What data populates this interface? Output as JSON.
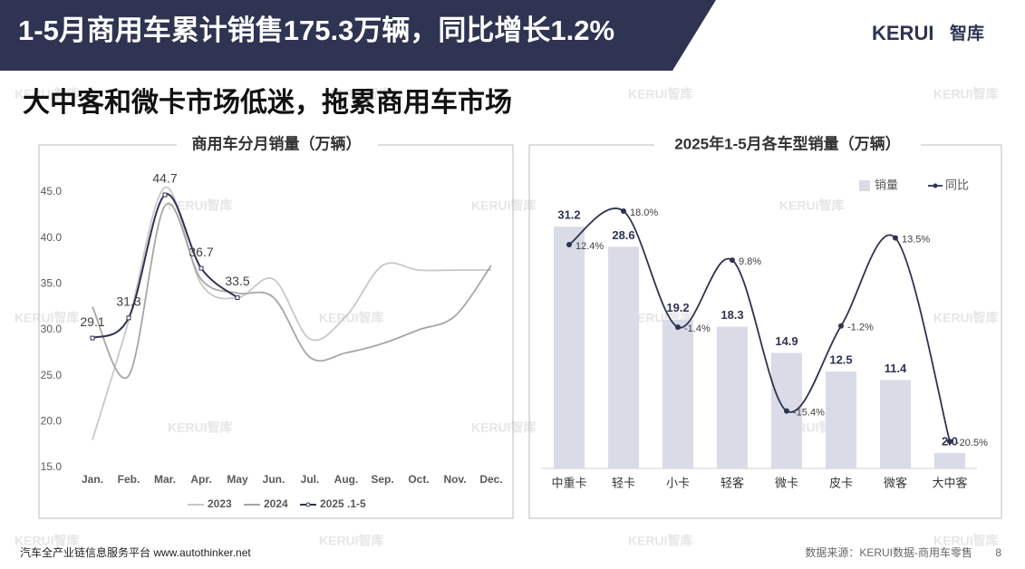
{
  "header": {
    "title": "1-5月商用车累计销售175.3万辆，同比增长1.2%",
    "logo": "KERUI",
    "logo_suffix": "智库"
  },
  "subtitle": "大中客和微卡市场低迷，拖累商用车市场",
  "watermark": "KERUI智库",
  "chart_data": [
    {
      "type": "line",
      "title": "商用车分月销量（万辆）",
      "categories": [
        "Jan.",
        "Feb.",
        "Mar.",
        "Apr.",
        "May",
        "Jun.",
        "Jul.",
        "Aug.",
        "Sep.",
        "Oct.",
        "Nov.",
        "Dec."
      ],
      "series": [
        {
          "name": "2023",
          "color": "#c8c8c8",
          "values": [
            18,
            31,
            45.5,
            35,
            33.5,
            35.5,
            29,
            31.5,
            37,
            36.5,
            36.5,
            36.5
          ]
        },
        {
          "name": "2024",
          "color": "#a6a6a6",
          "values": [
            32.5,
            25,
            43.5,
            35.5,
            34,
            33.5,
            27,
            27.5,
            28.5,
            30,
            31.5,
            37
          ]
        },
        {
          "name": "2025 .1-5",
          "color": "#2e3451",
          "values": [
            29.1,
            31.3,
            44.7,
            36.7,
            33.5,
            null,
            null,
            null,
            null,
            null,
            null,
            null
          ]
        }
      ],
      "ylim": [
        15,
        45
      ],
      "yticks": [
        {
          "value": 15,
          "label": "15.0"
        },
        {
          "value": 20,
          "label": "20.0"
        },
        {
          "value": 25,
          "label": "25.0"
        },
        {
          "value": 30,
          "label": "30.0"
        },
        {
          "value": 35,
          "label": "35.0"
        },
        {
          "value": 40,
          "label": "40.0"
        },
        {
          "value": 45,
          "label": "45.0"
        }
      ],
      "legend": "bottom"
    },
    {
      "type": "combo",
      "title": "2025年1-5月各车型销量（万辆）",
      "categories": [
        "中重卡",
        "轻卡",
        "小卡",
        "轻客",
        "微卡",
        "皮卡",
        "微客",
        "大中客"
      ],
      "series": [
        {
          "name": "销量",
          "color": "#d9dbe6",
          "type": "bar",
          "values": [
            31.2,
            28.6,
            19.2,
            18.3,
            14.9,
            12.5,
            11.4,
            2.0
          ],
          "value_labels": [
            "31.2",
            "28.6",
            "19.2",
            "18.3",
            "14.9",
            "12.5",
            "11.4",
            "2.0"
          ]
        },
        {
          "name": "同比",
          "color": "#2e3451",
          "type": "line",
          "axis": "y2",
          "values": [
            12.4,
            18.0,
            -1.4,
            9.8,
            -15.4,
            -1.2,
            13.5,
            -20.5
          ],
          "value_labels": [
            "12.4%",
            "18.0%",
            "-1.4%",
            "9.8%",
            "-15.4%",
            "-1.2%",
            "13.5%",
            "-20.5%"
          ]
        }
      ],
      "ylim": [
        0,
        38
      ],
      "y2lim": [
        -25,
        24.2
      ],
      "legend": "top-right"
    }
  ],
  "footer": {
    "left": "汽车全产业链信息服务平台 www.autothinker.net",
    "source": "数据来源：KERUI数据-商用车零售",
    "page": "8"
  }
}
